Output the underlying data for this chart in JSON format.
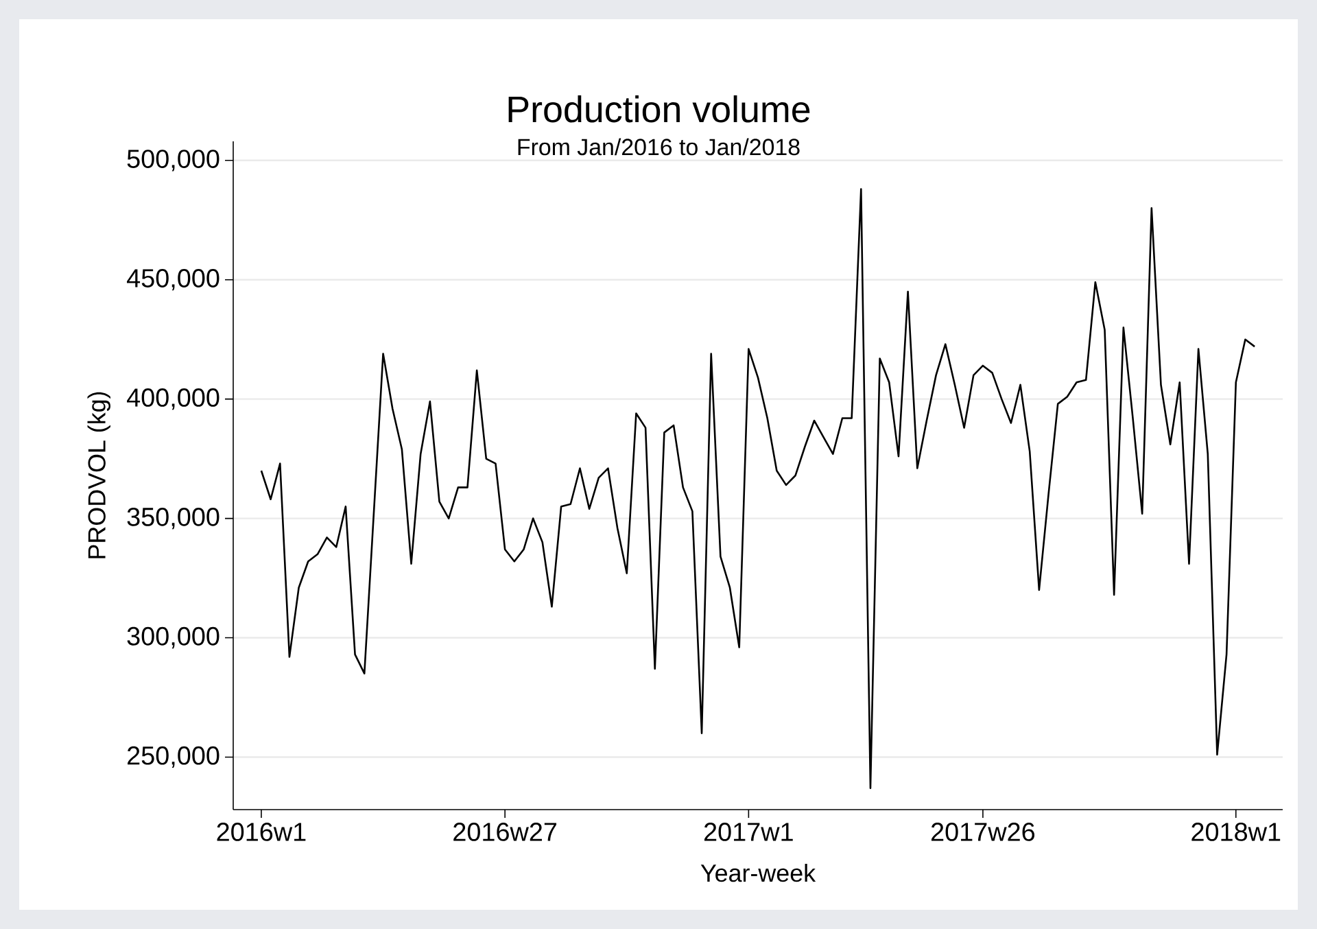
{
  "chart_data": {
    "type": "line",
    "title": "Production volume",
    "subtitle": "From Jan/2016 to Jan/2018",
    "xlabel": "Year-week",
    "ylabel": "PRODVOL (kg)",
    "categories": [
      "2016w1",
      null,
      null,
      null,
      null,
      null,
      null,
      null,
      null,
      null,
      null,
      null,
      null,
      null,
      null,
      null,
      null,
      null,
      null,
      null,
      null,
      null,
      null,
      null,
      null,
      null,
      "2016w27",
      null,
      null,
      null,
      null,
      null,
      null,
      null,
      null,
      null,
      null,
      null,
      null,
      null,
      null,
      null,
      null,
      null,
      null,
      null,
      null,
      null,
      null,
      null,
      null,
      null,
      "2017w1",
      null,
      null,
      null,
      null,
      null,
      null,
      null,
      null,
      null,
      null,
      null,
      null,
      null,
      null,
      null,
      null,
      null,
      null,
      null,
      null,
      null,
      null,
      null,
      null,
      "2017w26",
      null,
      null,
      null,
      null,
      null,
      null,
      null,
      null,
      null,
      null,
      null,
      null,
      null,
      null,
      null,
      null,
      null,
      null,
      null,
      null,
      null,
      null,
      null,
      null,
      null,
      null,
      "2018w1",
      null,
      null
    ],
    "series": [
      {
        "color": "#000000",
        "values": [
          370000,
          358000,
          373000,
          292000,
          321000,
          332000,
          335000,
          342000,
          338000,
          355000,
          293000,
          285000,
          352000,
          419000,
          396000,
          379000,
          331000,
          377000,
          399000,
          357000,
          350000,
          363000,
          363000,
          412000,
          375000,
          373000,
          337000,
          332000,
          337000,
          350000,
          340000,
          313000,
          355000,
          356000,
          371000,
          354000,
          367000,
          371000,
          346000,
          327000,
          394000,
          388000,
          287000,
          386000,
          389000,
          363000,
          353000,
          260000,
          419000,
          334000,
          321000,
          296000,
          421000,
          409000,
          392000,
          370000,
          364000,
          368000,
          380000,
          391000,
          384000,
          377000,
          392000,
          392000,
          488000,
          237000,
          417000,
          407000,
          376000,
          445000,
          371000,
          391000,
          410000,
          423000,
          406000,
          388000,
          410000,
          414000,
          411000,
          400000,
          390000,
          406000,
          378000,
          320000,
          360000,
          398000,
          401000,
          407000,
          408000,
          449000,
          429000,
          318000,
          430000,
          392000,
          352000,
          480000,
          406000,
          381000,
          407000,
          331000,
          421000,
          377000,
          251000,
          293000,
          407000,
          425000,
          422000
        ]
      }
    ],
    "ylim": [
      228000,
      508000
    ],
    "yticks": [
      {
        "value": 250000,
        "label": "250,000"
      },
      {
        "value": 300000,
        "label": "300,000"
      },
      {
        "value": 350000,
        "label": "350,000"
      },
      {
        "value": 400000,
        "label": "400,000"
      },
      {
        "value": 450000,
        "label": "450,000"
      },
      {
        "value": 500000,
        "label": "500,000"
      }
    ],
    "grid": "y"
  }
}
